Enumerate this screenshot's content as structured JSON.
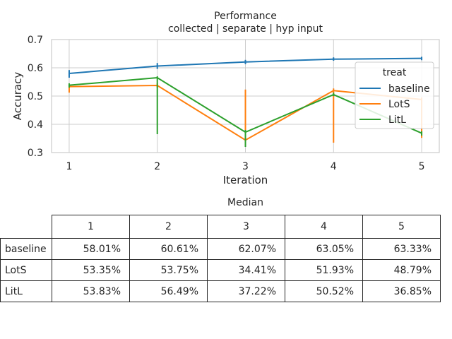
{
  "chart_data": {
    "type": "line",
    "title": "Performance",
    "subtitle": "collected | separate | hyp input",
    "xlabel": "Iteration",
    "ylabel": "Accuracy",
    "x": [
      1,
      2,
      3,
      4,
      5
    ],
    "xlim": [
      0.8,
      5.2
    ],
    "ylim": [
      0.3,
      0.7
    ],
    "yticks": [
      0.3,
      0.4,
      0.5,
      0.6,
      0.7
    ],
    "grid": true,
    "legend": {
      "title": "treat",
      "placement": "right"
    },
    "series": [
      {
        "name": "baseline",
        "color": "#1f77b4",
        "values": [
          0.5801,
          0.6061,
          0.6207,
          0.6305,
          0.6333
        ],
        "err_low": [
          0.565,
          0.596,
          0.613,
          0.625,
          0.627
        ],
        "err_high": [
          0.592,
          0.617,
          0.628,
          0.637,
          0.639
        ]
      },
      {
        "name": "LotS",
        "color": "#ff7f0e",
        "values": [
          0.5335,
          0.5375,
          0.3441,
          0.5193,
          0.4879
        ],
        "err_low": [
          0.512,
          0.53,
          0.33,
          0.335,
          0.352
        ],
        "err_high": [
          0.54,
          0.545,
          0.523,
          0.527,
          0.495
        ]
      },
      {
        "name": "LitL",
        "color": "#2ca02c",
        "values": [
          0.5383,
          0.5649,
          0.3722,
          0.5052,
          0.3685
        ],
        "err_low": [
          0.53,
          0.365,
          0.32,
          0.5,
          0.36
        ],
        "err_high": [
          0.545,
          0.57,
          0.38,
          0.512,
          0.375
        ]
      }
    ]
  },
  "table": {
    "title": "Median",
    "columns": [
      "1",
      "2",
      "3",
      "4",
      "5"
    ],
    "rows": [
      {
        "label": "baseline",
        "cells": [
          "58.01%",
          "60.61%",
          "62.07%",
          "63.05%",
          "63.33%"
        ]
      },
      {
        "label": "LotS",
        "cells": [
          "53.35%",
          "53.75%",
          "34.41%",
          "51.93%",
          "48.79%"
        ]
      },
      {
        "label": "LitL",
        "cells": [
          "53.83%",
          "56.49%",
          "37.22%",
          "50.52%",
          "36.85%"
        ]
      }
    ]
  }
}
